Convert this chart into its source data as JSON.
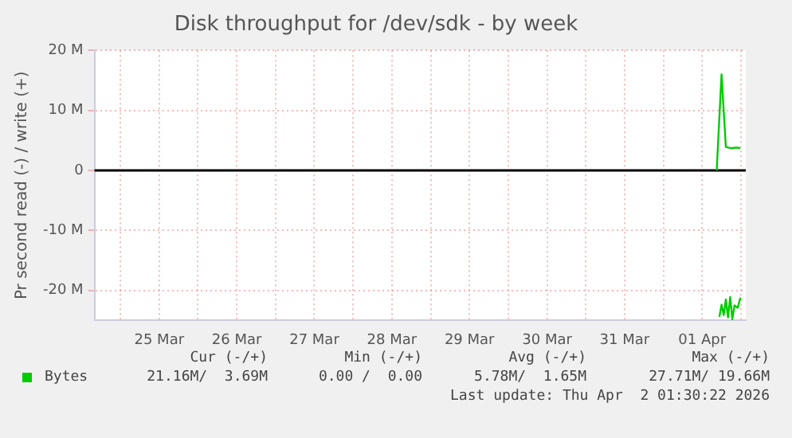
{
  "chart_data": {
    "type": "line",
    "title": "Disk throughput for /dev/sdk - by week",
    "ylabel": "Pr second read (-) / write (+)",
    "xlim": [
      "2026-03-24T16:00",
      "2026-04-02T01:30"
    ],
    "xticks": [
      {
        "value": "2026-03-25T00:00",
        "label": null
      },
      {
        "value": "2026-03-25T12:00",
        "label": "25 Mar"
      },
      {
        "value": "2026-03-26T00:00",
        "label": null
      },
      {
        "value": "2026-03-26T12:00",
        "label": "26 Mar"
      },
      {
        "value": "2026-03-27T00:00",
        "label": null
      },
      {
        "value": "2026-03-27T12:00",
        "label": "27 Mar"
      },
      {
        "value": "2026-03-28T00:00",
        "label": null
      },
      {
        "value": "2026-03-28T12:00",
        "label": "28 Mar"
      },
      {
        "value": "2026-03-29T00:00",
        "label": null
      },
      {
        "value": "2026-03-29T12:00",
        "label": "29 Mar"
      },
      {
        "value": "2026-03-30T00:00",
        "label": null
      },
      {
        "value": "2026-03-30T12:00",
        "label": "30 Mar"
      },
      {
        "value": "2026-03-31T00:00",
        "label": null
      },
      {
        "value": "2026-03-31T12:00",
        "label": "31 Mar"
      },
      {
        "value": "2026-04-01T00:00",
        "label": null
      },
      {
        "value": "2026-04-01T12:00",
        "label": "01 Apr"
      },
      {
        "value": "2026-04-02T00:00",
        "label": null
      }
    ],
    "ylim": [
      -25,
      20
    ],
    "yticks": [
      {
        "value": -20,
        "label": "-20 M"
      },
      {
        "value": -10,
        "label": "-10 M"
      },
      0,
      {
        "value": 10,
        "label": "10 M"
      },
      {
        "value": 20,
        "label": "20 M"
      }
    ],
    "grid": true,
    "legend": "bottom left",
    "marker": "none",
    "line_style": "solid",
    "ref_lines": [
      {
        "axis": "y",
        "value": 0,
        "color": "#000000"
      }
    ],
    "series": [
      {
        "name": "Bytes",
        "color": "#00cc00",
        "x": [
          "2026-04-01T16:30",
          "2026-04-01T18:00",
          "2026-04-01T19:20",
          "2026-04-01T21:00",
          "2026-04-01T23:00",
          "2026-04-01T23:50"
        ],
        "values": [
          0,
          16,
          3.9,
          3.7,
          3.8,
          3.7
        ]
      },
      {
        "color": "#00cc00",
        "x": [
          "2026-04-01T17:20",
          "2026-04-01T18:00",
          "2026-04-01T18:40",
          "2026-04-01T19:20",
          "2026-04-01T20:00",
          "2026-04-01T20:40",
          "2026-04-01T21:20",
          "2026-04-01T22:00",
          "2026-04-01T23:00",
          "2026-04-01T23:50"
        ],
        "values": [
          -24.4,
          -22.4,
          -24.1,
          -21.5,
          -24.5,
          -21.1,
          -24.8,
          -22.5,
          -22.9,
          -21.2
        ]
      }
    ],
    "annotations": [
      "Cur (-/+)",
      "Min (-/+)",
      "Avg (-/+)",
      "Max (-/+)",
      "21.16M/  3.69M",
      "0.00 /  0.00",
      "5.78M/  1.65M",
      "27.71M/ 19.66M",
      "Last update: Thu Apr  2 01:30:22 2026"
    ]
  }
}
